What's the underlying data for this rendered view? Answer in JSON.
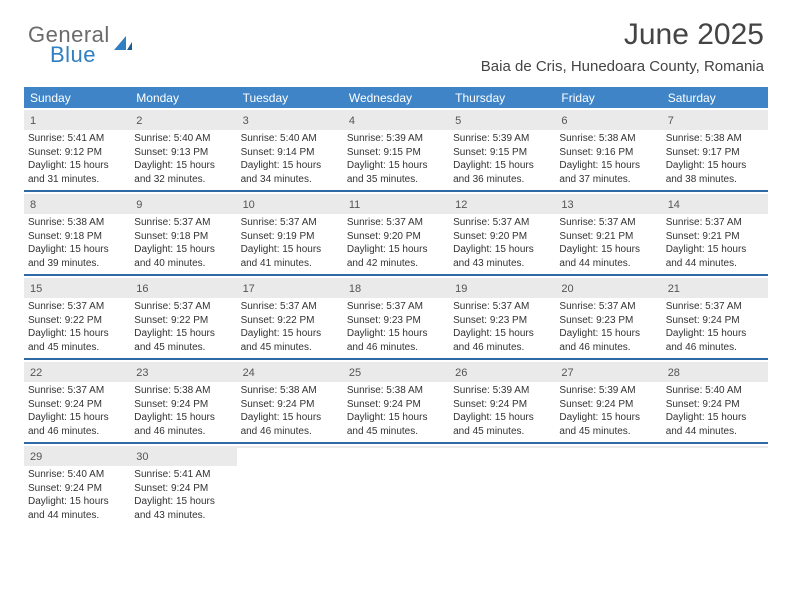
{
  "brand": {
    "line1": "General",
    "line2": "Blue"
  },
  "title": "June 2025",
  "location": "Baia de Cris, Hunedoara County, Romania",
  "colors": {
    "header_bg": "#3f84c6",
    "week_divider": "#2f6aa5",
    "daynum_bg": "#eaeaea",
    "text": "#333333",
    "brand_gray": "#6b6b6b",
    "brand_blue": "#2f7fc2"
  },
  "dow": [
    "Sunday",
    "Monday",
    "Tuesday",
    "Wednesday",
    "Thursday",
    "Friday",
    "Saturday"
  ],
  "weeks": [
    [
      {
        "n": "1",
        "sr": "5:41 AM",
        "ss": "9:12 PM",
        "dl": "15 hours and 31 minutes."
      },
      {
        "n": "2",
        "sr": "5:40 AM",
        "ss": "9:13 PM",
        "dl": "15 hours and 32 minutes."
      },
      {
        "n": "3",
        "sr": "5:40 AM",
        "ss": "9:14 PM",
        "dl": "15 hours and 34 minutes."
      },
      {
        "n": "4",
        "sr": "5:39 AM",
        "ss": "9:15 PM",
        "dl": "15 hours and 35 minutes."
      },
      {
        "n": "5",
        "sr": "5:39 AM",
        "ss": "9:15 PM",
        "dl": "15 hours and 36 minutes."
      },
      {
        "n": "6",
        "sr": "5:38 AM",
        "ss": "9:16 PM",
        "dl": "15 hours and 37 minutes."
      },
      {
        "n": "7",
        "sr": "5:38 AM",
        "ss": "9:17 PM",
        "dl": "15 hours and 38 minutes."
      }
    ],
    [
      {
        "n": "8",
        "sr": "5:38 AM",
        "ss": "9:18 PM",
        "dl": "15 hours and 39 minutes."
      },
      {
        "n": "9",
        "sr": "5:37 AM",
        "ss": "9:18 PM",
        "dl": "15 hours and 40 minutes."
      },
      {
        "n": "10",
        "sr": "5:37 AM",
        "ss": "9:19 PM",
        "dl": "15 hours and 41 minutes."
      },
      {
        "n": "11",
        "sr": "5:37 AM",
        "ss": "9:20 PM",
        "dl": "15 hours and 42 minutes."
      },
      {
        "n": "12",
        "sr": "5:37 AM",
        "ss": "9:20 PM",
        "dl": "15 hours and 43 minutes."
      },
      {
        "n": "13",
        "sr": "5:37 AM",
        "ss": "9:21 PM",
        "dl": "15 hours and 44 minutes."
      },
      {
        "n": "14",
        "sr": "5:37 AM",
        "ss": "9:21 PM",
        "dl": "15 hours and 44 minutes."
      }
    ],
    [
      {
        "n": "15",
        "sr": "5:37 AM",
        "ss": "9:22 PM",
        "dl": "15 hours and 45 minutes."
      },
      {
        "n": "16",
        "sr": "5:37 AM",
        "ss": "9:22 PM",
        "dl": "15 hours and 45 minutes."
      },
      {
        "n": "17",
        "sr": "5:37 AM",
        "ss": "9:22 PM",
        "dl": "15 hours and 45 minutes."
      },
      {
        "n": "18",
        "sr": "5:37 AM",
        "ss": "9:23 PM",
        "dl": "15 hours and 46 minutes."
      },
      {
        "n": "19",
        "sr": "5:37 AM",
        "ss": "9:23 PM",
        "dl": "15 hours and 46 minutes."
      },
      {
        "n": "20",
        "sr": "5:37 AM",
        "ss": "9:23 PM",
        "dl": "15 hours and 46 minutes."
      },
      {
        "n": "21",
        "sr": "5:37 AM",
        "ss": "9:24 PM",
        "dl": "15 hours and 46 minutes."
      }
    ],
    [
      {
        "n": "22",
        "sr": "5:37 AM",
        "ss": "9:24 PM",
        "dl": "15 hours and 46 minutes."
      },
      {
        "n": "23",
        "sr": "5:38 AM",
        "ss": "9:24 PM",
        "dl": "15 hours and 46 minutes."
      },
      {
        "n": "24",
        "sr": "5:38 AM",
        "ss": "9:24 PM",
        "dl": "15 hours and 46 minutes."
      },
      {
        "n": "25",
        "sr": "5:38 AM",
        "ss": "9:24 PM",
        "dl": "15 hours and 45 minutes."
      },
      {
        "n": "26",
        "sr": "5:39 AM",
        "ss": "9:24 PM",
        "dl": "15 hours and 45 minutes."
      },
      {
        "n": "27",
        "sr": "5:39 AM",
        "ss": "9:24 PM",
        "dl": "15 hours and 45 minutes."
      },
      {
        "n": "28",
        "sr": "5:40 AM",
        "ss": "9:24 PM",
        "dl": "15 hours and 44 minutes."
      }
    ],
    [
      {
        "n": "29",
        "sr": "5:40 AM",
        "ss": "9:24 PM",
        "dl": "15 hours and 44 minutes."
      },
      {
        "n": "30",
        "sr": "5:41 AM",
        "ss": "9:24 PM",
        "dl": "15 hours and 43 minutes."
      },
      {
        "empty": true
      },
      {
        "empty": true
      },
      {
        "empty": true
      },
      {
        "empty": true
      },
      {
        "empty": true
      }
    ]
  ],
  "labels": {
    "sunrise": "Sunrise:",
    "sunset": "Sunset:",
    "daylight": "Daylight:"
  }
}
